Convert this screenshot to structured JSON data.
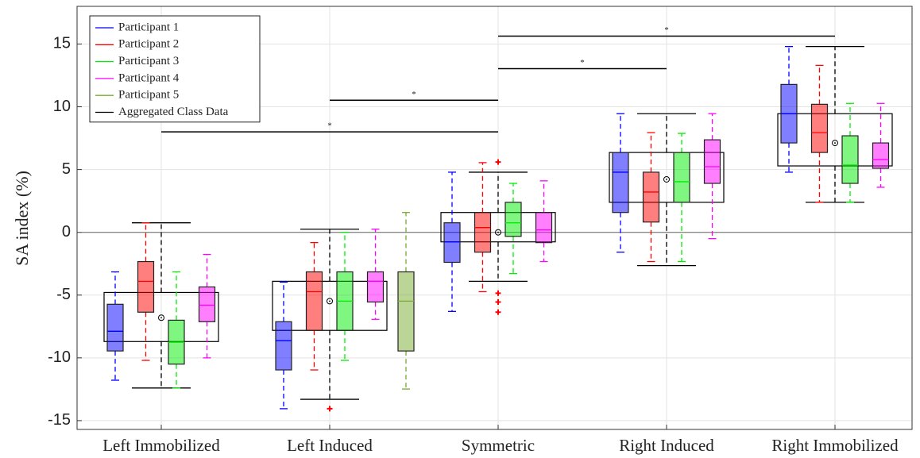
{
  "chart_data": {
    "type": "box",
    "ylabel": "SA index (%)",
    "categories": [
      "Left Immobilized",
      "Left Induced",
      "Symmetric",
      "Right Induced",
      "Right Immobilized"
    ],
    "ylim": [
      -15.7,
      18
    ],
    "yticks": [
      -15,
      -10,
      -5,
      0,
      5,
      10,
      15
    ],
    "grid": true,
    "legend": "upper-left",
    "series": [
      {
        "name": "Participant 1",
        "color": "#0000ff",
        "boxes": [
          {
            "min": -11.78,
            "q1": -9.45,
            "median": -7.88,
            "q3": -5.73,
            "max": -3.15
          },
          {
            "min": -14.05,
            "q1": -10.96,
            "median": -8.63,
            "q3": -7.12,
            "max": -3.97
          },
          {
            "min": -6.3,
            "q1": -2.39,
            "median": -0.76,
            "q3": 0.76,
            "max": 4.79
          },
          {
            "min": -1.58,
            "q1": 1.58,
            "median": 4.79,
            "q3": 6.36,
            "max": 9.45
          },
          {
            "min": 4.79,
            "q1": 7.12,
            "median": 9.45,
            "q3": 11.78,
            "max": 14.8
          }
        ]
      },
      {
        "name": "Participant 2",
        "color": "#ff0000",
        "boxes": [
          {
            "min": -10.2,
            "q1": -6.36,
            "median": -3.9,
            "q3": -2.33,
            "max": 0.76
          },
          {
            "min": -10.96,
            "q1": -7.81,
            "median": -4.73,
            "q3": -3.15,
            "max": -0.82
          },
          {
            "min": -4.73,
            "q1": -1.58,
            "median": 0.38,
            "q3": 1.58,
            "max": 5.55
          },
          {
            "min": -2.33,
            "q1": 0.82,
            "median": 3.21,
            "q3": 4.79,
            "max": 7.94
          },
          {
            "min": 2.39,
            "q1": 6.36,
            "median": 7.94,
            "q3": 10.2,
            "max": 13.3
          }
        ]
      },
      {
        "name": "Participant 3",
        "color": "#00ee00",
        "boxes": [
          {
            "min": -12.4,
            "q1": -10.5,
            "median": -8.76,
            "q3": -7.0,
            "max": -3.15
          },
          {
            "min": -10.2,
            "q1": -7.81,
            "median": -5.48,
            "q3": -3.15,
            "max": 0
          },
          {
            "min": -3.28,
            "q1": -0.32,
            "median": 0.76,
            "q3": 2.39,
            "max": 3.9
          },
          {
            "min": -2.33,
            "q1": 2.39,
            "median": 4.03,
            "q3": 6.36,
            "max": 7.88
          },
          {
            "min": 2.39,
            "q1": 3.9,
            "median": 5.36,
            "q3": 7.69,
            "max": 10.27
          }
        ]
      },
      {
        "name": "Participant 4",
        "color": "#ff00ff",
        "boxes": [
          {
            "min": -10.0,
            "q1": -7.12,
            "median": -5.8,
            "q3": -4.35,
            "max": -1.76
          },
          {
            "min": -6.93,
            "q1": -5.55,
            "median": -3.9,
            "q3": -3.15,
            "max": 0.25
          },
          {
            "min": -2.33,
            "q1": -0.82,
            "median": 0.19,
            "q3": 1.58,
            "max": 4.1
          },
          {
            "min": -0.5,
            "q1": 3.9,
            "median": 5.23,
            "q3": 7.37,
            "max": 9.45
          },
          {
            "min": 3.59,
            "q1": 5.1,
            "median": 5.8,
            "q3": 7.12,
            "max": 10.27
          }
        ]
      },
      {
        "name": "Participant 5",
        "color": "#77ac30",
        "boxes": [
          null,
          {
            "min": -12.48,
            "q1": -9.45,
            "median": -5.48,
            "q3": -3.15,
            "max": 1.58
          },
          null,
          null,
          null
        ]
      }
    ],
    "aggregate": {
      "name": "Aggregated Class Data",
      "color": "#000000",
      "outlier_color": "#ff0000",
      "boxes": [
        {
          "min": -12.4,
          "q1": -8.7,
          "q3": -4.79,
          "max": 0.76,
          "mean": -6.8,
          "outliers": []
        },
        {
          "min": -13.3,
          "q1": -7.81,
          "q3": -3.9,
          "max": 0.25,
          "mean": -5.48,
          "outliers": [
            -14.05
          ]
        },
        {
          "min": -3.9,
          "q1": -0.76,
          "q3": 1.58,
          "max": 4.79,
          "mean": 0,
          "outliers": [
            5.6,
            -4.85,
            -5.55,
            -6.36
          ]
        },
        {
          "min": -2.65,
          "q1": 2.39,
          "q3": 6.36,
          "max": 9.45,
          "mean": 4.22,
          "outliers": []
        },
        {
          "min": 2.39,
          "q1": 5.29,
          "q3": 9.45,
          "max": 14.8,
          "mean": 7.12,
          "outliers": []
        }
      ]
    },
    "significance": [
      {
        "from": 0,
        "to": 2,
        "y": 8.0,
        "label": "*"
      },
      {
        "from": 1,
        "to": 2,
        "y": 10.52,
        "label": "*"
      },
      {
        "from": 2,
        "to": 3,
        "y": 13.04,
        "label": "*"
      },
      {
        "from": 2,
        "to": 4,
        "y": 15.63,
        "label": "*"
      }
    ]
  }
}
